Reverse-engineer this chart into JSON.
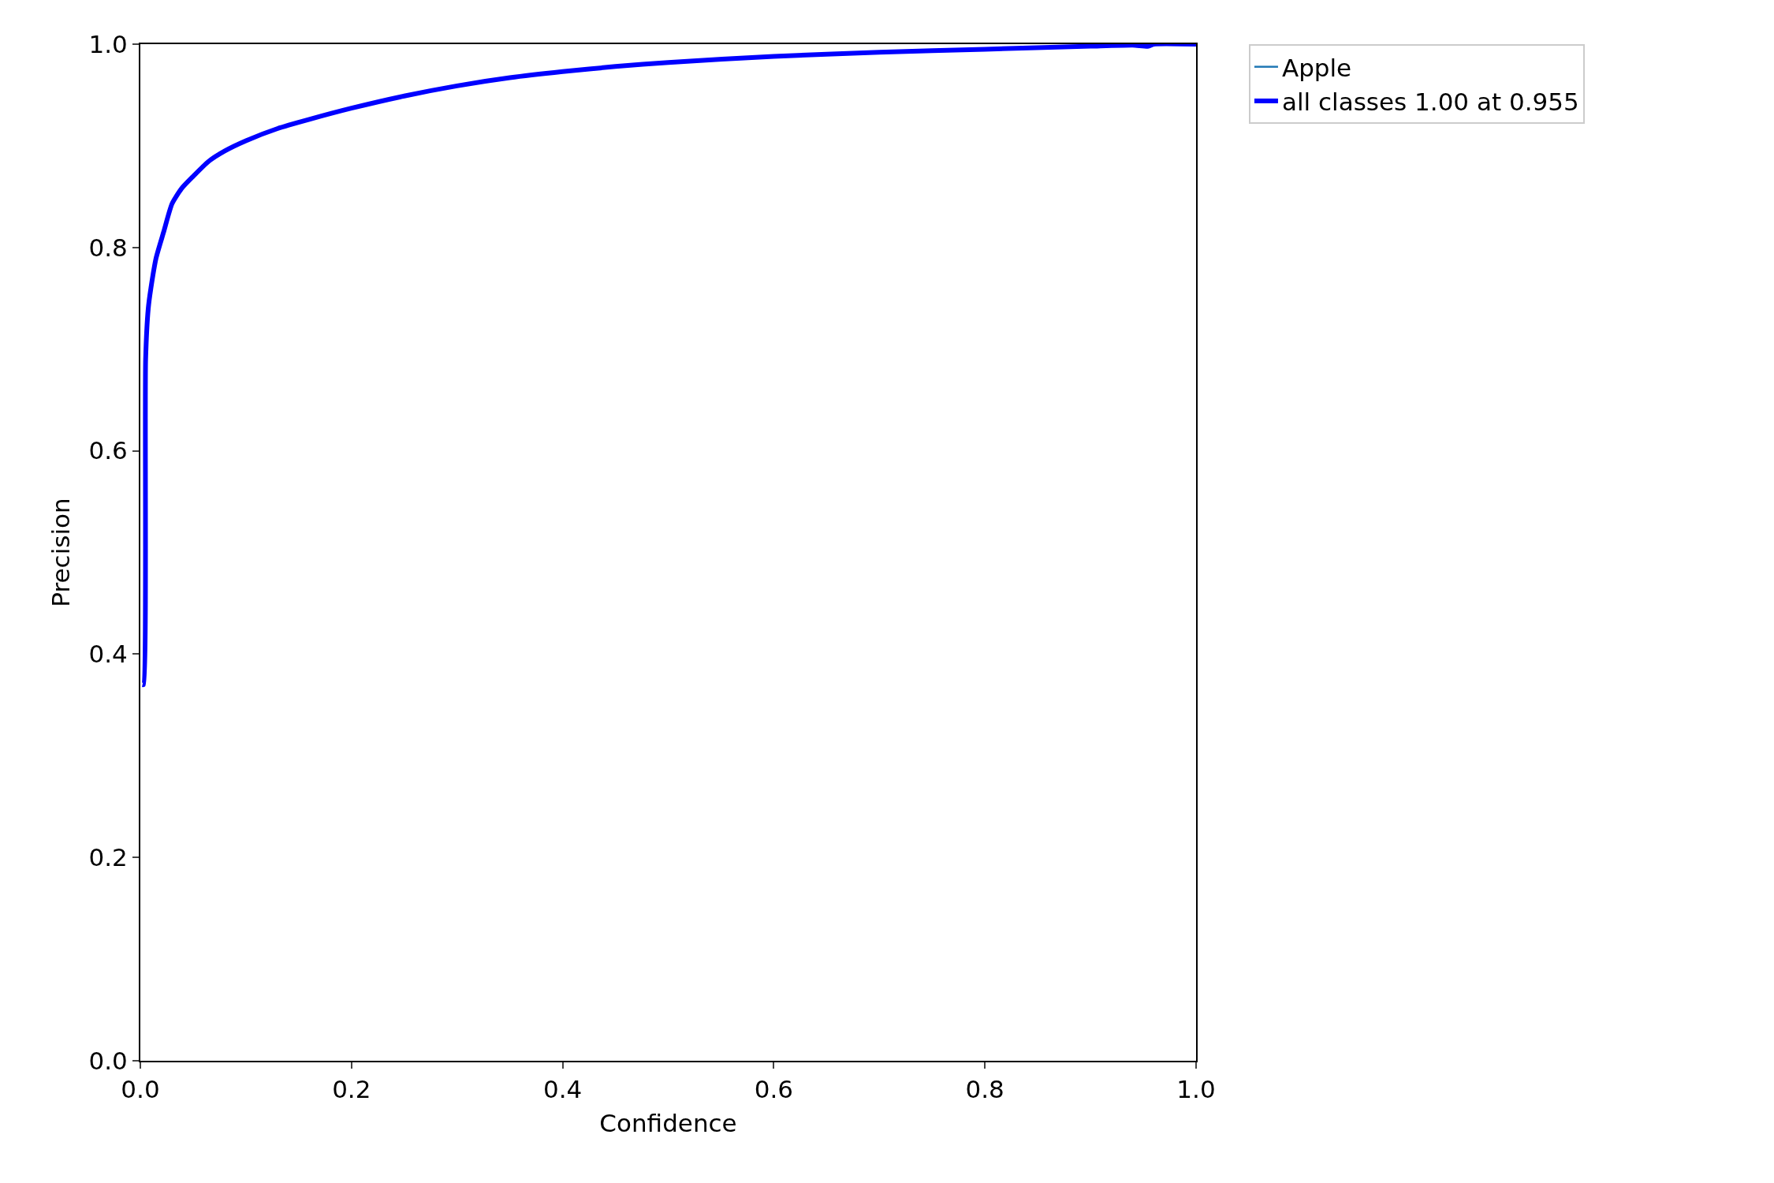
{
  "chart_data": {
    "type": "line",
    "xlabel": "Confidence",
    "ylabel": "Precision",
    "x": [
      0.002,
      0.003,
      0.005,
      0.0075,
      0.01,
      0.015,
      0.022,
      0.03,
      0.039,
      0.05,
      0.065,
      0.08,
      0.1,
      0.13,
      0.16,
      0.2,
      0.25,
      0.3,
      0.35,
      0.4,
      0.45,
      0.5,
      0.6,
      0.7,
      0.8,
      0.9,
      0.94,
      0.955,
      0.96,
      1.0
    ],
    "series": [
      {
        "name": "Apple",
        "color": "#1f77b4",
        "values": [
          null,
          null,
          null,
          null,
          null,
          null,
          null,
          null,
          null,
          null,
          null,
          null,
          null,
          null,
          null,
          null,
          null,
          null,
          null,
          null,
          null,
          null,
          null,
          null,
          null,
          null,
          null,
          null,
          null,
          null
        ]
      },
      {
        "name": "all classes 1.00 at 0.955",
        "color": "#0000ff",
        "values": [
          0.37,
          0.37,
          0.69,
          0.74,
          0.76,
          0.79,
          0.815,
          0.843,
          0.858,
          0.87,
          0.885,
          0.895,
          0.905,
          0.917,
          0.926,
          0.937,
          0.949,
          0.959,
          0.967,
          0.973,
          0.978,
          0.982,
          0.988,
          0.992,
          0.995,
          0.998,
          0.999,
          0.998,
          1.0,
          1.0
        ]
      }
    ],
    "xlim": [
      0,
      1
    ],
    "ylim": [
      0,
      1
    ],
    "xticks": [
      {
        "value": 0,
        "label": "0.0"
      },
      {
        "value": 0.2,
        "label": "0.2"
      },
      {
        "value": 0.4,
        "label": "0.4"
      },
      {
        "value": 0.6,
        "label": "0.6"
      },
      {
        "value": 0.8,
        "label": "0.8"
      },
      {
        "value": 1,
        "label": "1.0"
      }
    ],
    "yticks": [
      {
        "value": 0,
        "label": "0.0"
      },
      {
        "value": 0.2,
        "label": "0.2"
      },
      {
        "value": 0.4,
        "label": "0.4"
      },
      {
        "value": 0.6,
        "label": "0.6"
      },
      {
        "value": 0.8,
        "label": "0.8"
      },
      {
        "value": 1,
        "label": "1.0"
      }
    ],
    "legend": "top right",
    "marker": "none",
    "line_style": "solid"
  }
}
